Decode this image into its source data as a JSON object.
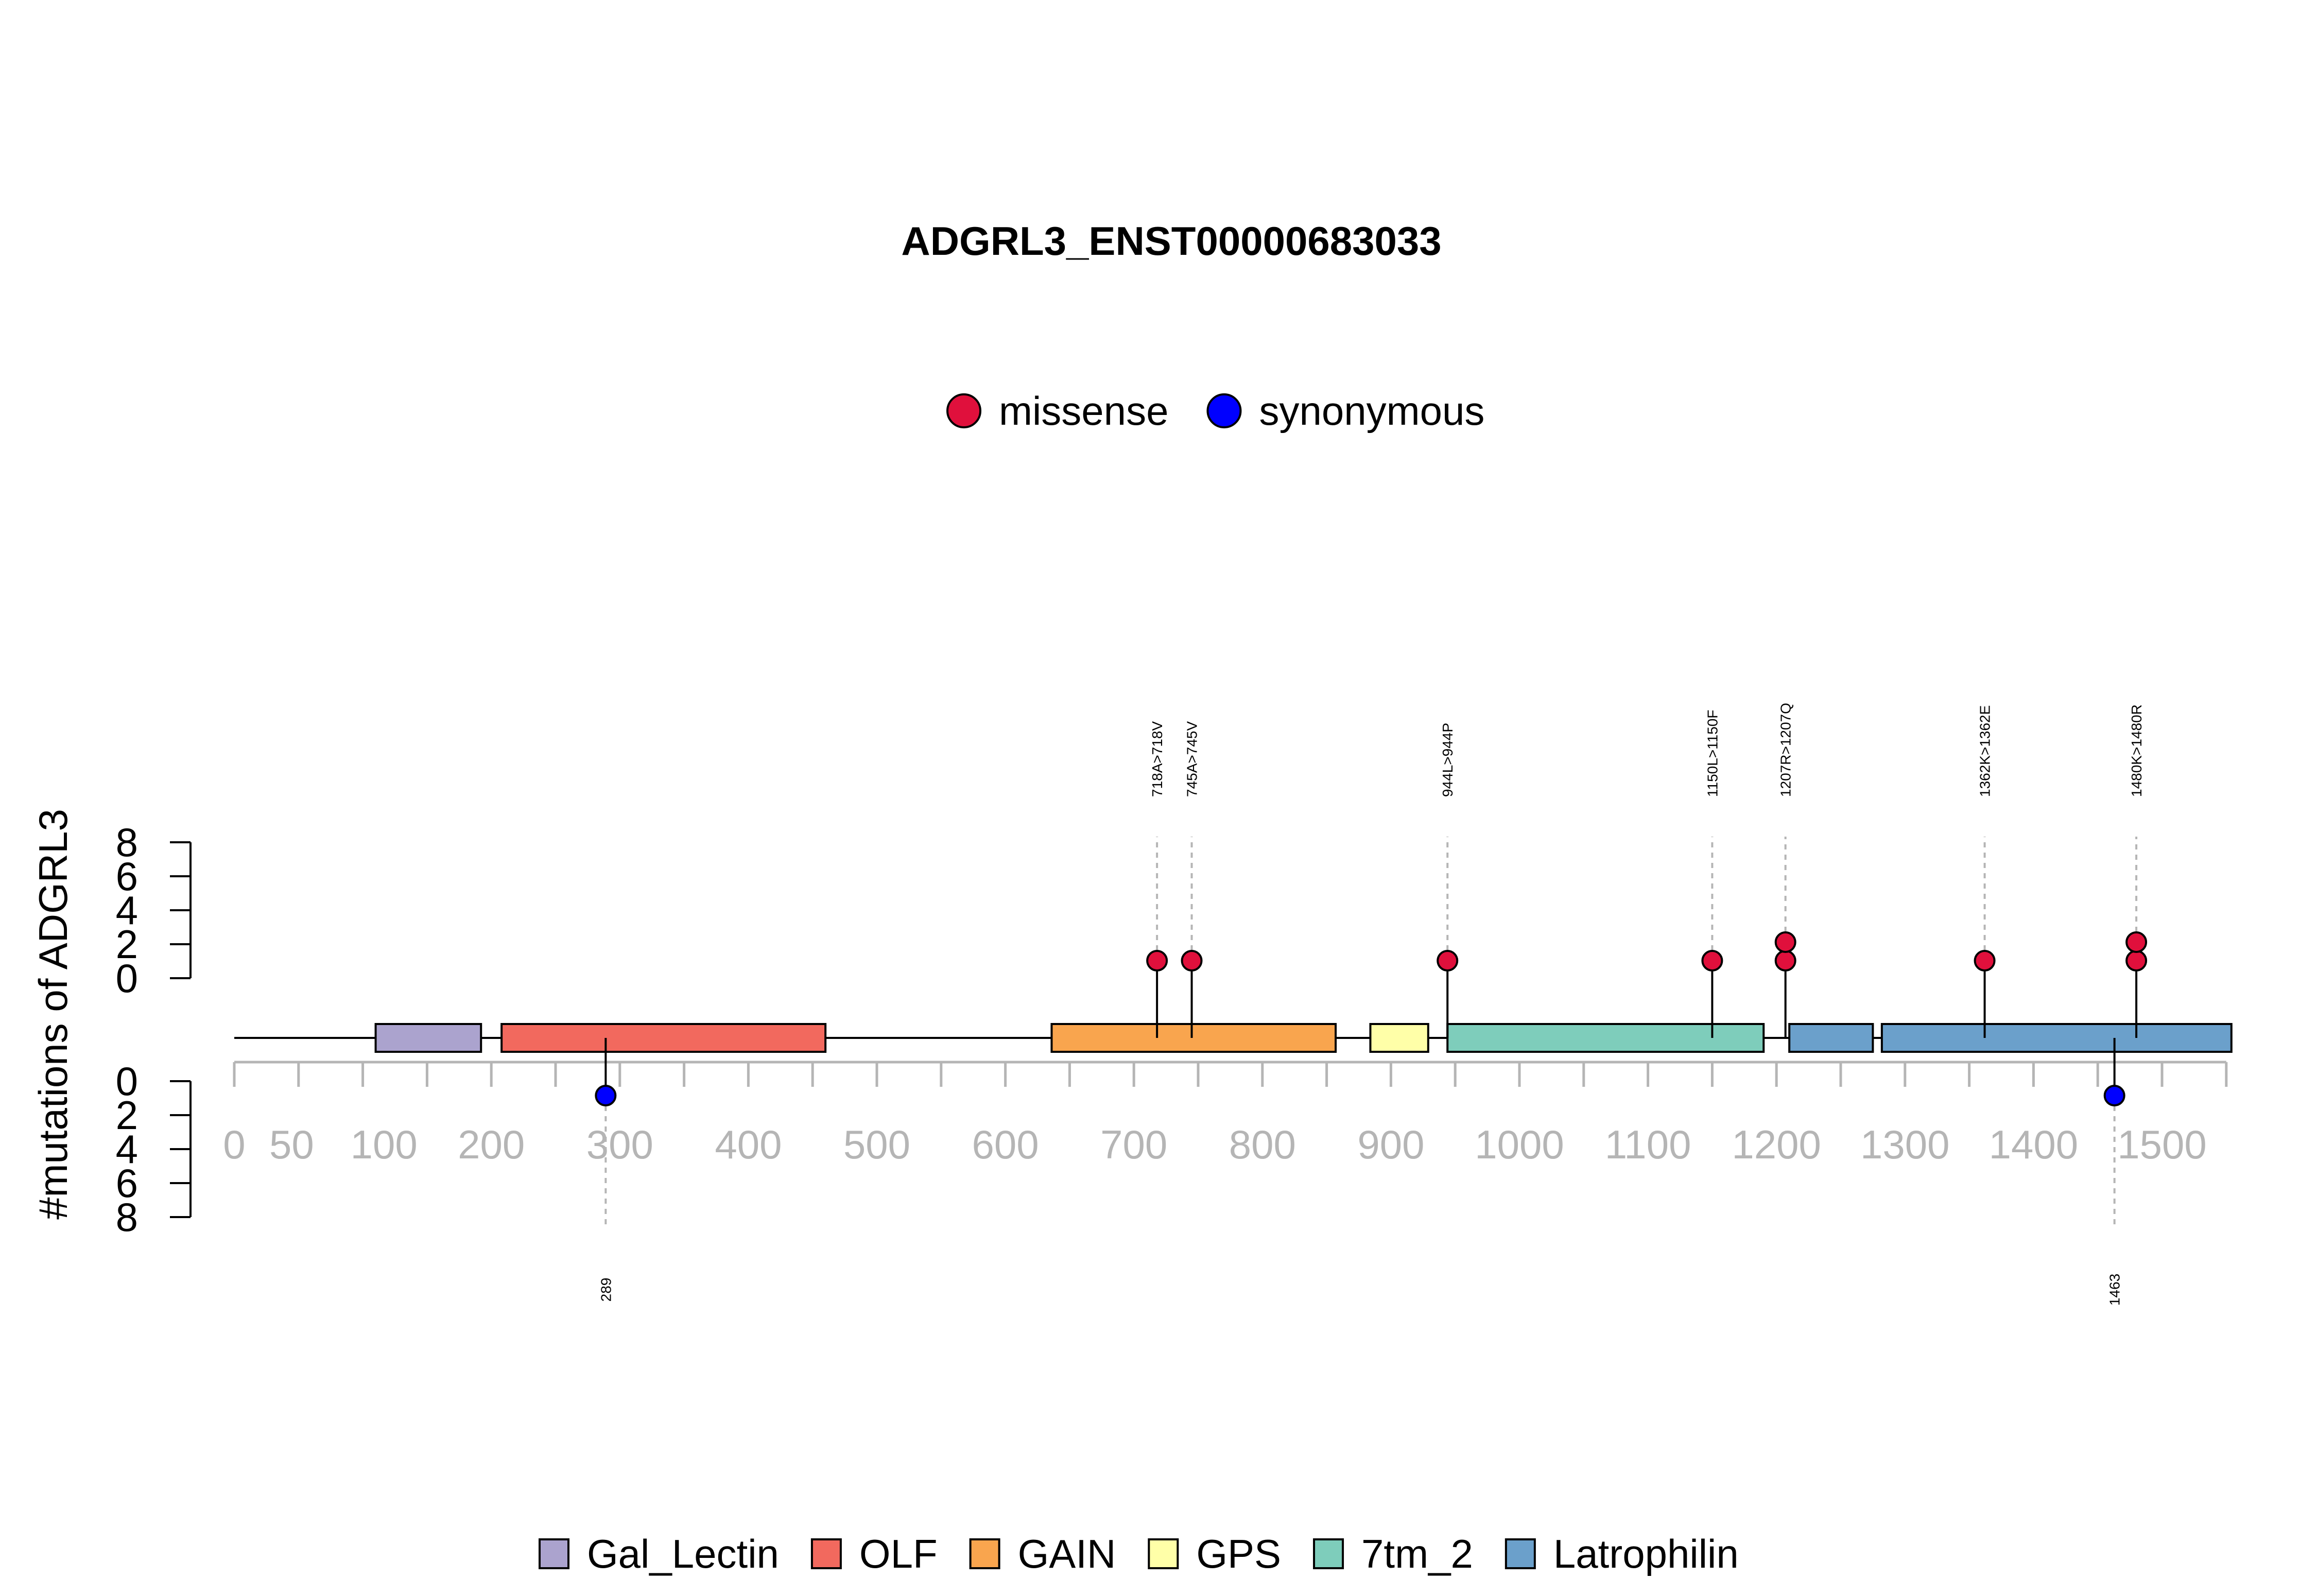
{
  "chart_data": {
    "type": "lollipop",
    "title": "ADGRL3_ENST00000683033",
    "ylabel": "#mutations of ADGRL3",
    "protein_length": 1550,
    "xlim": [
      0,
      1550
    ],
    "x_ticks": [
      0,
      50,
      100,
      200,
      300,
      400,
      500,
      600,
      700,
      800,
      900,
      1000,
      1100,
      1200,
      1300,
      1400,
      1500
    ],
    "x_tick_labels": [
      "0",
      "50",
      "100",
      "200",
      "300",
      "400",
      "500",
      "600",
      "700",
      "800",
      "900",
      "1000",
      "1100",
      "1200",
      "1300",
      "1400",
      "1500"
    ],
    "y_ticks_upper": [
      "0",
      "2",
      "4",
      "6",
      "8"
    ],
    "y_ticks_lower": [
      "0",
      "2",
      "4",
      "6",
      "8"
    ],
    "ylim": [
      0,
      8
    ],
    "series_legend": [
      {
        "name": "missense",
        "color": "#E0103C"
      },
      {
        "name": "synonymous",
        "color": "#0000FF"
      }
    ],
    "domains": [
      {
        "name": "Gal_Lectin",
        "start": 110,
        "end": 192,
        "color": "#ABA3CE"
      },
      {
        "name": "OLF",
        "start": 208,
        "end": 460,
        "color": "#F2695E"
      },
      {
        "name": "GAIN",
        "start": 636,
        "end": 857,
        "color": "#F9A54E"
      },
      {
        "name": "GPS",
        "start": 884,
        "end": 929,
        "color": "#FFFFA8"
      },
      {
        "name": "7tm_2",
        "start": 944,
        "end": 1190,
        "color": "#7ECDBB"
      },
      {
        "name": "Latrophilin",
        "start": 1210,
        "end": 1275,
        "color": "#6BA0CB"
      },
      {
        "name": "Latrophilin",
        "start": 1282,
        "end": 1554,
        "color": "#6BA0CB"
      }
    ],
    "domain_legend": [
      {
        "name": "Gal_Lectin",
        "color": "#ABA3CE"
      },
      {
        "name": "OLF",
        "color": "#F2695E"
      },
      {
        "name": "GAIN",
        "color": "#F9A54E"
      },
      {
        "name": "GPS",
        "color": "#FFFFA8"
      },
      {
        "name": "7tm_2",
        "color": "#7ECDBB"
      },
      {
        "name": "Latrophilin",
        "color": "#6BA0CB"
      }
    ],
    "mutations_upper": [
      {
        "label": "718A>718V",
        "position": 718,
        "count": 1,
        "type": "missense"
      },
      {
        "label": "745A>745V",
        "position": 745,
        "count": 1,
        "type": "missense"
      },
      {
        "label": "944L>944P",
        "position": 944,
        "count": 1,
        "type": "missense"
      },
      {
        "label": "1150L>1150F",
        "position": 1150,
        "count": 1,
        "type": "missense"
      },
      {
        "label": "1207R>1207Q",
        "position": 1207,
        "count": 2,
        "type": "missense"
      },
      {
        "label": "1362K>1362E",
        "position": 1362,
        "count": 1,
        "type": "missense"
      },
      {
        "label": "1480K>1480R",
        "position": 1480,
        "count": 2,
        "type": "missense"
      }
    ],
    "mutations_lower": [
      {
        "label": "289",
        "position": 289,
        "count": 1,
        "type": "synonymous"
      },
      {
        "label": "1463",
        "position": 1463,
        "count": 1,
        "type": "synonymous"
      }
    ]
  }
}
